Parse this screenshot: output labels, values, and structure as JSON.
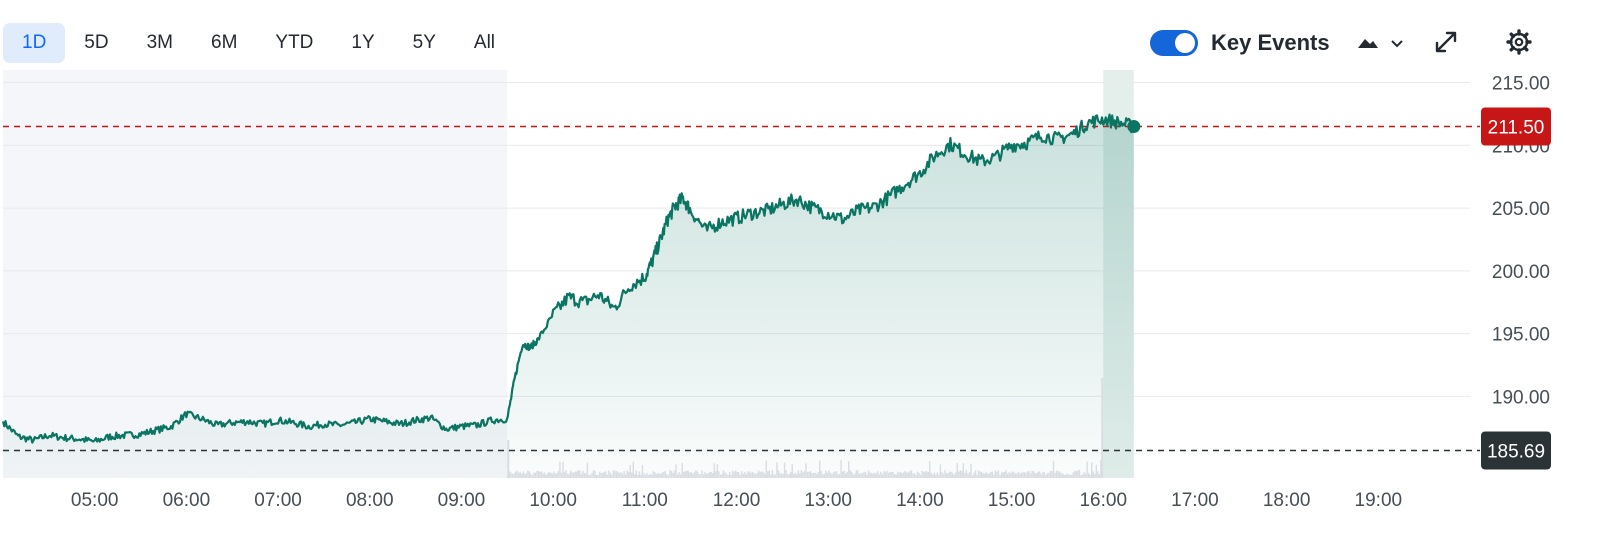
{
  "toolbar": {
    "ranges": [
      "1D",
      "5D",
      "3M",
      "6M",
      "YTD",
      "1Y",
      "5Y",
      "All"
    ],
    "active_range": "1D",
    "key_events_label": "Key Events",
    "key_events_on": true,
    "icons": {
      "chart_type": "mountain-chart-icon",
      "expand": "expand-icon",
      "settings": "gear-icon"
    }
  },
  "colors": {
    "line": "#0b7563",
    "up_badge": "#c71616",
    "prev_close_badge": "#2b3336",
    "accent": "#1466d9",
    "shade": "#f4f6f9"
  },
  "chart_data": {
    "type": "area",
    "title": "",
    "xlabel": "",
    "ylabel": "",
    "x_ticks": [
      "05:00",
      "06:00",
      "07:00",
      "08:00",
      "09:00",
      "10:00",
      "11:00",
      "12:00",
      "13:00",
      "14:00",
      "15:00",
      "16:00",
      "17:00",
      "18:00",
      "19:00"
    ],
    "y_ticks": [
      "215.00",
      "210.00",
      "205.00",
      "200.00",
      "195.00",
      "190.00"
    ],
    "ylim": [
      183.5,
      216
    ],
    "xlim_hours": [
      "04:00",
      "20:00"
    ],
    "grid": true,
    "current_price": "211.50",
    "previous_close": "185.69",
    "regular_session": [
      "09:30",
      "16:00"
    ],
    "series": [
      {
        "x": [
          "04:00",
          "04:10",
          "04:20",
          "04:30",
          "04:40",
          "04:50",
          "05:00",
          "05:10",
          "05:20",
          "05:30",
          "05:40",
          "05:50",
          "06:00",
          "06:10",
          "06:20",
          "06:30",
          "06:40",
          "06:50",
          "07:00",
          "07:10",
          "07:20",
          "07:30",
          "07:40",
          "07:50",
          "08:00",
          "08:10",
          "08:20",
          "08:30",
          "08:40",
          "08:50",
          "09:00",
          "09:10",
          "09:20",
          "09:30",
          "09:35",
          "09:40",
          "09:45",
          "09:50",
          "10:00",
          "10:10",
          "10:20",
          "10:30",
          "10:40",
          "10:50",
          "11:00",
          "11:05",
          "11:10",
          "11:15",
          "11:20",
          "11:25",
          "11:30",
          "11:40",
          "11:50",
          "12:00",
          "12:10",
          "12:20",
          "12:30",
          "12:40",
          "12:50",
          "13:00",
          "13:10",
          "13:20",
          "13:30",
          "13:40",
          "13:50",
          "14:00",
          "14:10",
          "14:20",
          "14:30",
          "14:40",
          "14:50",
          "15:00",
          "15:10",
          "15:20",
          "15:30",
          "15:40",
          "15:50",
          "16:00",
          "16:10",
          "16:20"
        ],
        "values": [
          188.0,
          186.8,
          186.5,
          186.9,
          186.7,
          186.6,
          186.4,
          186.8,
          186.9,
          187.0,
          187.3,
          187.6,
          188.6,
          188.2,
          187.7,
          187.9,
          188.0,
          187.8,
          188.1,
          187.9,
          187.6,
          187.8,
          187.7,
          187.9,
          188.2,
          188.0,
          187.8,
          188.1,
          188.3,
          187.4,
          187.6,
          187.7,
          188.1,
          188.2,
          191.5,
          194.2,
          193.9,
          194.5,
          196.5,
          197.9,
          197.5,
          198.1,
          197.0,
          198.8,
          199.5,
          200.8,
          202.4,
          204.1,
          205.2,
          205.8,
          204.8,
          203.2,
          203.9,
          204.2,
          204.6,
          204.8,
          205.3,
          205.7,
          205.0,
          204.6,
          204.1,
          204.8,
          205.1,
          205.9,
          206.9,
          207.8,
          209.2,
          210.1,
          209.3,
          208.7,
          209.1,
          210.0,
          210.2,
          210.8,
          210.5,
          210.9,
          211.8,
          212.1,
          211.8,
          211.5
        ]
      }
    ]
  }
}
